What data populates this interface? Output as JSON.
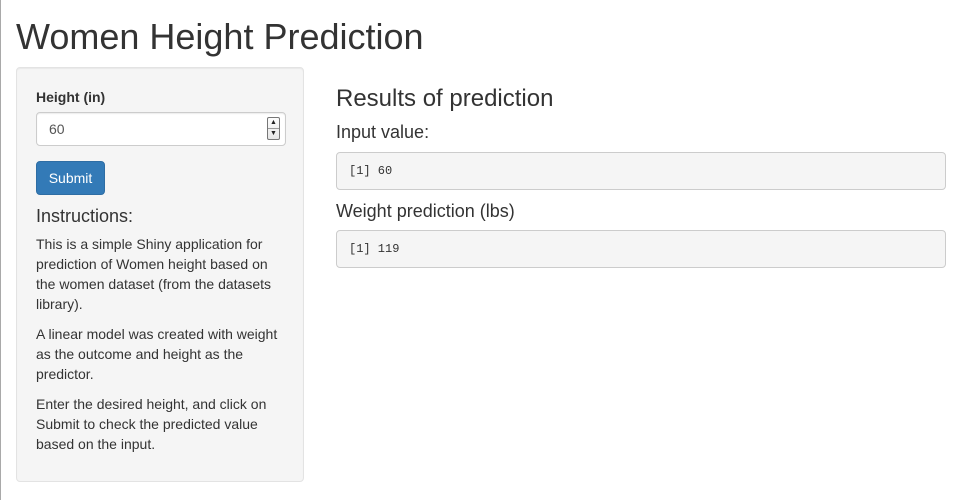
{
  "app": {
    "title": "Women Height Prediction"
  },
  "sidebar": {
    "height_input": {
      "label": "Height (in)",
      "value": "60"
    },
    "submit_label": "Submit",
    "instructions": {
      "heading": "Instructions:",
      "paragraphs": [
        "This is a simple Shiny application for prediction of Women height based on the women dataset (from the datasets library).",
        "A linear model was created with weight as the outcome and height as the predictor.",
        "Enter the desired height, and click on Submit to check the predicted value based on the input."
      ]
    }
  },
  "main": {
    "heading": "Results of prediction",
    "input_value": {
      "label": "Input value:",
      "output": "[1] 60"
    },
    "weight_prediction": {
      "label": "Weight prediction (lbs)",
      "output": "[1] 119"
    }
  },
  "colors": {
    "primary_button": "#337ab7",
    "well_background": "#f5f5f5",
    "text": "#333333"
  }
}
